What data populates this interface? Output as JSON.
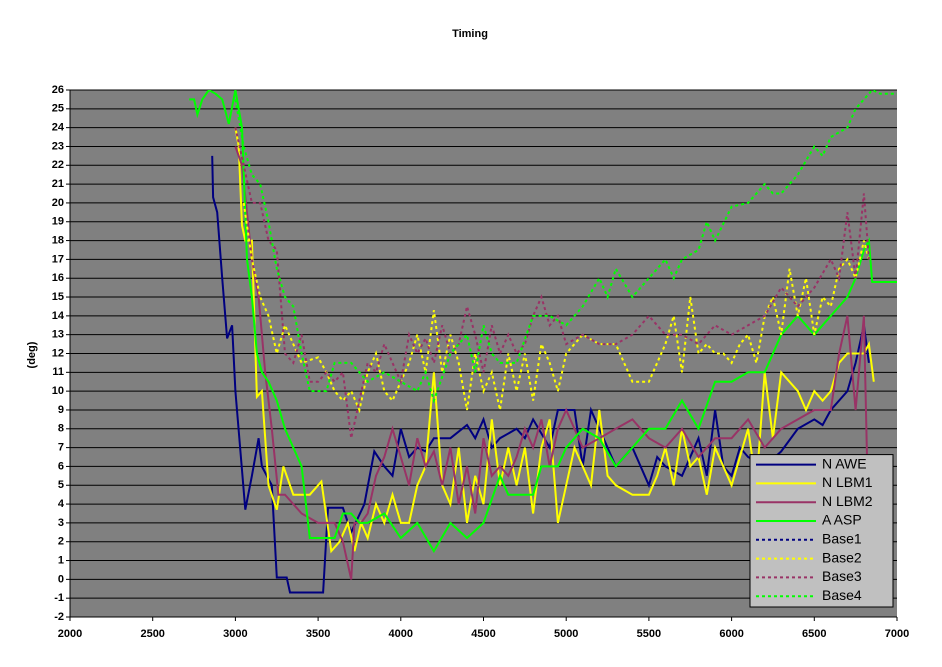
{
  "chart_data": {
    "type": "line",
    "title": "Timing",
    "ylabel": "(deg)",
    "xlim": [
      2000,
      7000
    ],
    "xticks": [
      2000,
      2500,
      3000,
      3500,
      4000,
      4500,
      5000,
      5500,
      6000,
      6500,
      7000
    ],
    "ylim": [
      -2,
      26
    ],
    "yticks": [
      -2,
      -1,
      0,
      1,
      2,
      3,
      4,
      5,
      6,
      7,
      8,
      9,
      10,
      11,
      12,
      13,
      14,
      15,
      16,
      17,
      18,
      19,
      20,
      21,
      22,
      23,
      24,
      25,
      26
    ],
    "grid": true,
    "legend": "lower-right",
    "series": [
      {
        "name": "N AWE",
        "color": "#000080",
        "style": "solid",
        "x": [
          2860,
          2865,
          2890,
          2920,
          2950,
          2980,
          3000,
          3060,
          3100,
          3140,
          3160,
          3220,
          3250,
          3310,
          3330,
          3530,
          3560,
          3650,
          3700,
          3780,
          3840,
          3900,
          3950,
          4000,
          4050,
          4100,
          4150,
          4200,
          4300,
          4400,
          4450,
          4500,
          4550,
          4600,
          4700,
          4750,
          4800,
          4900,
          4950,
          5050,
          5100,
          5150,
          5200,
          5300,
          5400,
          5500,
          5550,
          5600,
          5700,
          5800,
          5850,
          5900,
          5950,
          6000,
          6050,
          6100,
          6200,
          6300,
          6400,
          6500,
          6550,
          6600,
          6700,
          6750,
          6800,
          6830
        ],
        "values": [
          22.5,
          20.3,
          19.5,
          16,
          12.8,
          13.5,
          10,
          3.7,
          5.5,
          7.5,
          6,
          5,
          0.1,
          0.1,
          -0.7,
          -0.7,
          3.8,
          3.8,
          2.5,
          4,
          6.8,
          6,
          5.5,
          8,
          6.5,
          7,
          6.8,
          7.5,
          7.5,
          8.2,
          7.5,
          8.5,
          7,
          7.5,
          8,
          7.5,
          8.5,
          7,
          9,
          9,
          6,
          9,
          8,
          6,
          7,
          5,
          6.5,
          6,
          5.5,
          7.5,
          5.5,
          9,
          6,
          5.5,
          7,
          6.5,
          6,
          6.8,
          8,
          8.5,
          8.2,
          9,
          10,
          11.5,
          13.5,
          11.5
        ]
      },
      {
        "name": "N LBM1",
        "color": "#ffff00",
        "style": "solid",
        "x": [
          3000,
          3020,
          3040,
          3060,
          3100,
          3130,
          3160,
          3200,
          3250,
          3290,
          3350,
          3450,
          3520,
          3580,
          3630,
          3680,
          3720,
          3760,
          3800,
          3850,
          3900,
          3950,
          4000,
          4050,
          4100,
          4150,
          4200,
          4250,
          4300,
          4350,
          4400,
          4450,
          4500,
          4550,
          4600,
          4650,
          4700,
          4750,
          4800,
          4850,
          4900,
          4950,
          5000,
          5050,
          5100,
          5150,
          5200,
          5250,
          5300,
          5400,
          5500,
          5550,
          5600,
          5650,
          5700,
          5750,
          5800,
          5850,
          5900,
          6000,
          6100,
          6150,
          6200,
          6250,
          6300,
          6400,
          6450,
          6500,
          6550,
          6600,
          6650,
          6700,
          6750,
          6800,
          6830,
          6860
        ],
        "values": [
          24,
          23,
          18.8,
          18,
          18,
          9.7,
          10,
          5,
          3.7,
          6,
          4.5,
          4.5,
          5.2,
          1.5,
          2,
          3,
          1.5,
          3,
          2.2,
          4,
          3,
          4.5,
          3,
          3,
          5,
          6,
          11,
          5,
          4,
          7,
          3,
          5.5,
          4,
          8.5,
          5,
          7,
          5,
          7,
          3.5,
          7,
          8.5,
          3,
          5,
          7,
          6,
          5,
          9,
          5.5,
          5,
          4.5,
          4.5,
          5.5,
          7,
          5,
          8,
          6,
          6.5,
          4.5,
          7,
          5,
          8,
          5,
          11,
          7.5,
          11,
          10,
          9,
          10,
          9.5,
          10,
          11.5,
          12,
          12,
          12,
          12.5,
          10.5
        ]
      },
      {
        "name": "N LBM2",
        "color": "#993366",
        "style": "solid",
        "x": [
          3000,
          3040,
          3100,
          3140,
          3180,
          3220,
          3260,
          3300,
          3400,
          3500,
          3560,
          3600,
          3650,
          3700,
          3720,
          3760,
          3800,
          3850,
          3900,
          3950,
          4000,
          4050,
          4100,
          4150,
          4200,
          4250,
          4300,
          4350,
          4400,
          4450,
          4500,
          4550,
          4600,
          4650,
          4700,
          4750,
          4800,
          4850,
          4900,
          4950,
          5000,
          5100,
          5200,
          5300,
          5400,
          5500,
          5600,
          5700,
          5800,
          5900,
          6000,
          6100,
          6200,
          6300,
          6400,
          6500,
          6600,
          6650,
          6700,
          6750,
          6800,
          6820
        ],
        "values": [
          23,
          22,
          17,
          15,
          11,
          8,
          4.5,
          4.5,
          3.5,
          3,
          3,
          3,
          2,
          0,
          3,
          3,
          3.5,
          5.5,
          6.5,
          8,
          6.5,
          5,
          7.5,
          6,
          6.8,
          5,
          7,
          4,
          6,
          3.5,
          7.5,
          5.5,
          6,
          5.5,
          6.5,
          8,
          7,
          8.5,
          6,
          8,
          9,
          7,
          7.5,
          8,
          8.5,
          7.5,
          7,
          8,
          6.5,
          7.5,
          7.5,
          8.5,
          7,
          8,
          8.5,
          9,
          9,
          12,
          14,
          9,
          14,
          6
        ]
      },
      {
        "name": "A ASP",
        "color": "#00ff00",
        "style": "solid",
        "x": [
          2720,
          2750,
          2770,
          2800,
          2840,
          2880,
          2920,
          2960,
          3000,
          3040,
          3070,
          3100,
          3130,
          3160,
          3200,
          3250,
          3300,
          3350,
          3400,
          3450,
          3500,
          3600,
          3650,
          3700,
          3750,
          3800,
          3900,
          4000,
          4100,
          4200,
          4300,
          4400,
          4500,
          4600,
          4650,
          4800,
          4850,
          4950,
          5000,
          5100,
          5200,
          5300,
          5400,
          5500,
          5600,
          5700,
          5800,
          5900,
          6000,
          6100,
          6200,
          6300,
          6400,
          6500,
          6600,
          6700,
          6750,
          6800,
          6830,
          6850,
          7000
        ],
        "values": [
          25.5,
          25.5,
          24.7,
          25.5,
          26,
          25.8,
          25.5,
          24.2,
          26,
          24,
          17,
          15,
          12,
          11,
          10.5,
          9.5,
          8,
          7,
          6,
          2.2,
          2.2,
          2.2,
          3.5,
          3.5,
          3,
          3,
          3.5,
          2.2,
          3,
          1.5,
          3,
          2.2,
          3,
          5.5,
          4.5,
          4.5,
          6,
          6,
          7,
          8,
          7.5,
          6,
          7,
          8,
          8,
          9.5,
          8,
          10.5,
          10.5,
          11,
          11,
          13,
          14,
          13,
          14,
          15,
          16,
          17.5,
          18,
          15.8,
          15.8
        ]
      },
      {
        "name": "Base1",
        "color": "#000080",
        "style": "dashed",
        "x": [],
        "values": []
      },
      {
        "name": "Base2",
        "color": "#ffff00",
        "style": "dashed",
        "x": [
          3050,
          3100,
          3150,
          3200,
          3250,
          3300,
          3350,
          3400,
          3500,
          3550,
          3600,
          3650,
          3700,
          3750,
          3800,
          3850,
          3900,
          3950,
          4000,
          4050,
          4100,
          4150,
          4200,
          4250,
          4300,
          4350,
          4400,
          4450,
          4500,
          4550,
          4600,
          4650,
          4700,
          4750,
          4800,
          4850,
          4900,
          4950,
          5000,
          5100,
          5200,
          5300,
          5400,
          5500,
          5600,
          5650,
          5700,
          5750,
          5800,
          5850,
          5900,
          5950,
          6000,
          6050,
          6100,
          6150,
          6200,
          6250,
          6300,
          6350,
          6400,
          6450,
          6500,
          6550,
          6600,
          6650,
          6700,
          6750,
          6800,
          6830
        ],
        "values": [
          20,
          17,
          15,
          14,
          12,
          13.5,
          12.5,
          11.5,
          11.8,
          11,
          10,
          9.5,
          10,
          9,
          11,
          12,
          10,
          9.5,
          10.5,
          11.5,
          13,
          11,
          14.3,
          11,
          13,
          11.5,
          9,
          12,
          10,
          11,
          9,
          12,
          10,
          12,
          9.5,
          12.5,
          11.5,
          10,
          12,
          13,
          12.5,
          12.5,
          10.5,
          10.5,
          12.5,
          14,
          11,
          15,
          12,
          12.5,
          12,
          12,
          11.5,
          12.5,
          13,
          11.5,
          14,
          15,
          13,
          16.5,
          14,
          16,
          13,
          15,
          14.5,
          16.5,
          17,
          16,
          18,
          17
        ]
      },
      {
        "name": "Base3",
        "color": "#993366",
        "style": "dashed",
        "x": [
          3000,
          3050,
          3100,
          3150,
          3200,
          3250,
          3300,
          3350,
          3400,
          3450,
          3500,
          3550,
          3600,
          3650,
          3700,
          3750,
          3800,
          3850,
          3900,
          3950,
          4000,
          4050,
          4100,
          4150,
          4200,
          4250,
          4300,
          4350,
          4400,
          4450,
          4500,
          4550,
          4600,
          4650,
          4700,
          4750,
          4800,
          4850,
          4900,
          4950,
          5000,
          5100,
          5200,
          5300,
          5400,
          5500,
          5600,
          5700,
          5800,
          5900,
          6000,
          6100,
          6200,
          6300,
          6400,
          6500,
          6600,
          6650,
          6700,
          6750,
          6800,
          6830
        ],
        "values": [
          24,
          22,
          20,
          20,
          18,
          17.5,
          12,
          11.5,
          13,
          10.5,
          10.5,
          11,
          10.5,
          11,
          7.5,
          9.5,
          11.5,
          11,
          12.5,
          11.5,
          10.5,
          13,
          12,
          12.8,
          11.5,
          13.5,
          12,
          12.5,
          14.5,
          13,
          11,
          13.5,
          12,
          13,
          12,
          12.5,
          14,
          15,
          13.5,
          14,
          12.5,
          13,
          12.5,
          12.5,
          13,
          14,
          13,
          13,
          12.5,
          13.5,
          13,
          13.5,
          14,
          15.5,
          14.5,
          15.5,
          17,
          16,
          19.5,
          16,
          20.5,
          17
        ]
      },
      {
        "name": "Base4",
        "color": "#00ff00",
        "style": "dashed",
        "x": [
          3000,
          3050,
          3100,
          3150,
          3200,
          3250,
          3300,
          3350,
          3400,
          3450,
          3500,
          3550,
          3600,
          3700,
          3750,
          3800,
          3900,
          4000,
          4100,
          4150,
          4200,
          4300,
          4400,
          4450,
          4500,
          4550,
          4600,
          4700,
          4800,
          4900,
          5000,
          5100,
          5200,
          5250,
          5300,
          5400,
          5500,
          5600,
          5650,
          5700,
          5800,
          5850,
          5900,
          6000,
          6100,
          6200,
          6250,
          6300,
          6400,
          6500,
          6550,
          6600,
          6700,
          6750,
          6800,
          6850,
          6900,
          7000
        ],
        "values": [
          25.5,
          23,
          21.5,
          21,
          19,
          16.5,
          15,
          14.5,
          12,
          10,
          10,
          10,
          11.5,
          11.5,
          11,
          10.5,
          11,
          10.5,
          10,
          11,
          9.5,
          12,
          13,
          11,
          13.5,
          12,
          11.5,
          11.5,
          14,
          14,
          13.5,
          14.5,
          16,
          15,
          16.5,
          15,
          16,
          17,
          16,
          17,
          17.5,
          19,
          18,
          19.8,
          20,
          21,
          20.5,
          20.5,
          21.5,
          23,
          22.5,
          23.5,
          24,
          25,
          25.5,
          26,
          25.8,
          25.8
        ]
      }
    ]
  }
}
